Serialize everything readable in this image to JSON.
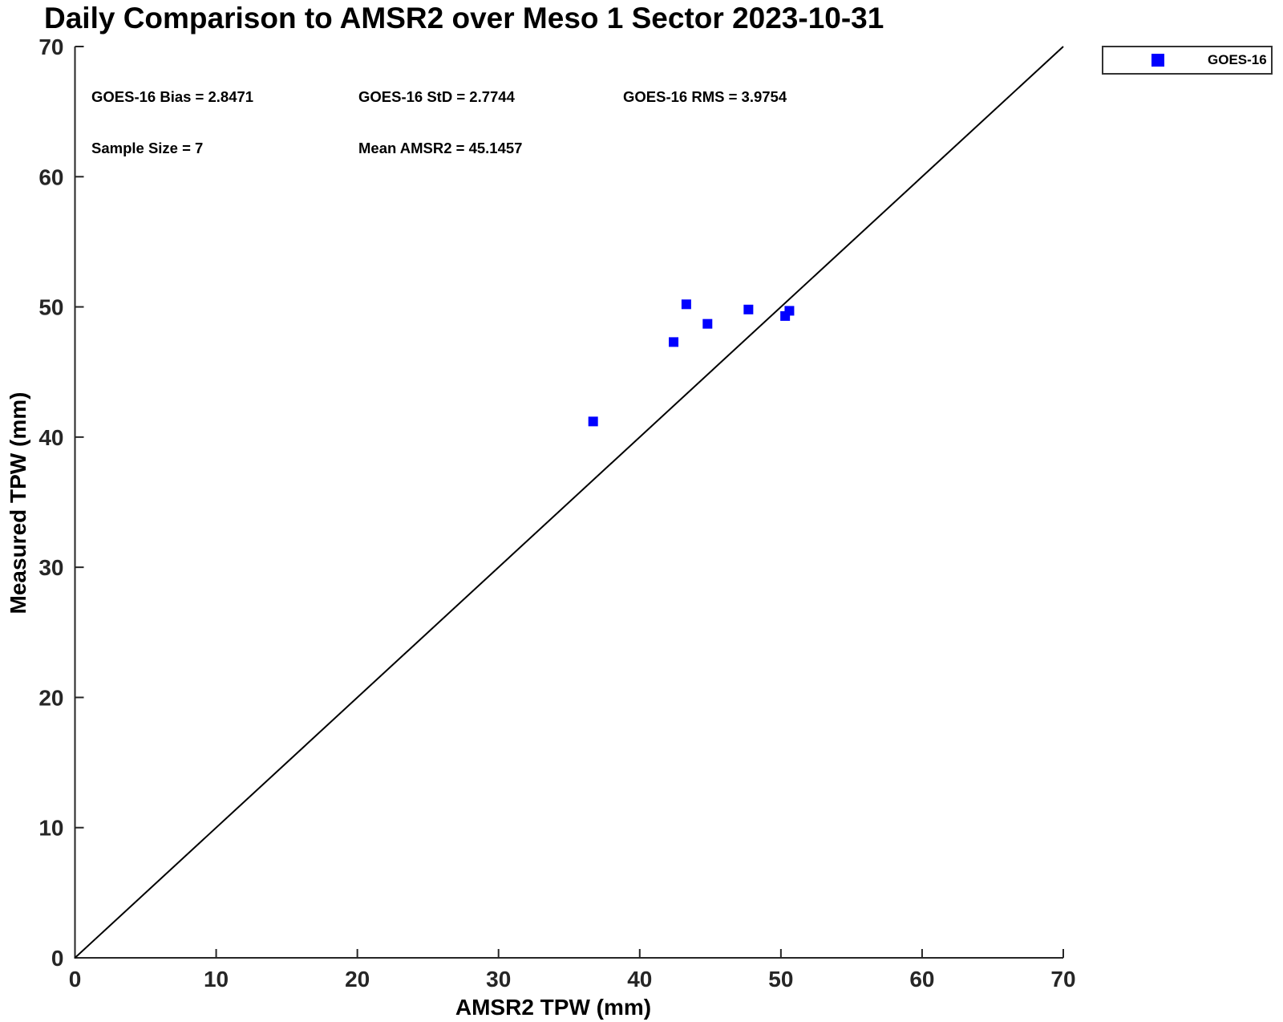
{
  "figure": {
    "title": "Daily Comparison to AMSR2 over Meso 1 Sector 2023-10-31"
  },
  "annotations": {
    "bias": "GOES-16 Bias = 2.8471",
    "std": "GOES-16 StD = 2.7744",
    "rms": "GOES-16 RMS = 3.9754",
    "sample_size": "Sample Size = 7",
    "mean_amsr2": "Mean AMSR2 = 45.1457"
  },
  "legend": {
    "entries": [
      {
        "label": "GOES-16",
        "marker": "filled-square",
        "color": "#0000ff"
      }
    ],
    "position": "top-right-outside"
  },
  "chart_data": {
    "type": "scatter",
    "title": "Daily Comparison to AMSR2 over Meso 1 Sector 2023-10-31",
    "xlabel": "AMSR2 TPW (mm)",
    "ylabel": "Measured TPW (mm)",
    "xlim": [
      0,
      70
    ],
    "ylim": [
      0,
      70
    ],
    "xticks": [
      0,
      10,
      20,
      30,
      40,
      50,
      60,
      70
    ],
    "yticks": [
      0,
      10,
      20,
      30,
      40,
      50,
      60,
      70
    ],
    "grid": false,
    "legend_position": "top-right-outside",
    "series": [
      {
        "name": "GOES-16",
        "marker": "square",
        "color": "#0000ff",
        "marker_size_px": 12,
        "points": [
          [
            36.7,
            41.2
          ],
          [
            42.4,
            47.3
          ],
          [
            43.3,
            50.2
          ],
          [
            44.8,
            48.7
          ],
          [
            47.7,
            49.8
          ],
          [
            50.3,
            49.3
          ],
          [
            50.6,
            49.7
          ]
        ]
      }
    ],
    "reference_line": {
      "from": [
        0,
        0
      ],
      "to": [
        70,
        70
      ],
      "color": "#000000"
    },
    "stats": {
      "bias": 2.8471,
      "std": 2.7744,
      "rms": 3.9754,
      "sample_size": 7,
      "mean_amsr2": 45.1457
    }
  },
  "colors": {
    "marker_blue": "#0000ff",
    "axis": "#262626",
    "text": "#000000",
    "background": "#ffffff"
  }
}
